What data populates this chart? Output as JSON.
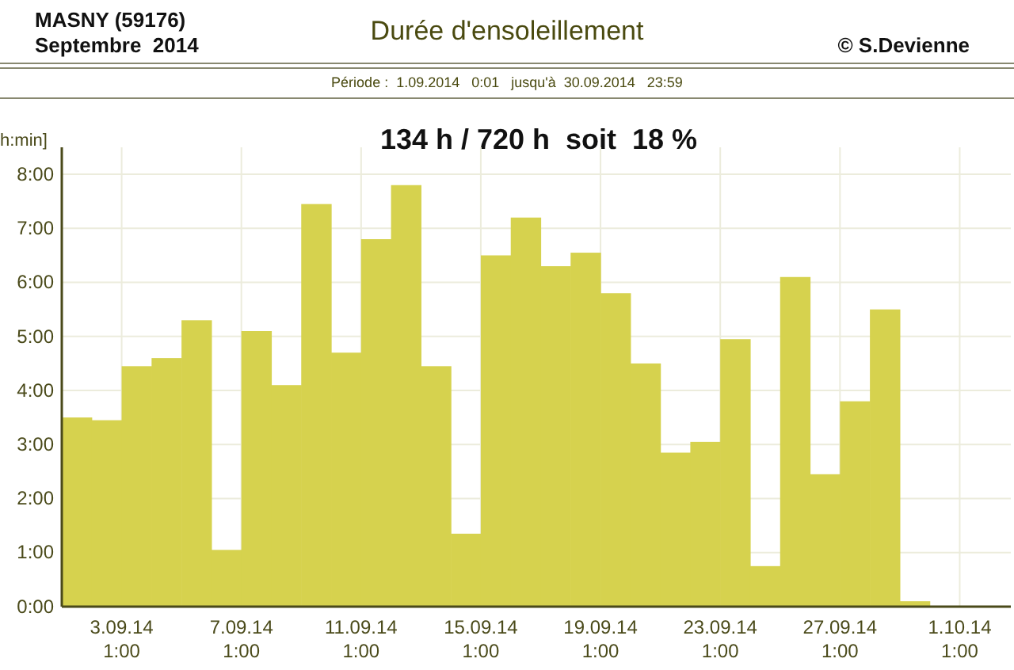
{
  "chart_data": {
    "type": "bar",
    "title": "Durée d'ensoleillement",
    "subtitle": "Période :  1.09.2014   0:01   jusqu'à  30.09.2014   23:59",
    "annotations": [
      "MASNY (59176)",
      "Septembre  2014",
      "© S.Devienne",
      "134 h / 720 h  soit  18 %"
    ],
    "ylabel": "h:min]",
    "x": [
      "2014-09-01T13:00",
      "2014-09-02T13:00",
      "2014-09-03T13:00",
      "2014-09-04T13:00",
      "2014-09-05T13:00",
      "2014-09-06T13:00",
      "2014-09-07T13:00",
      "2014-09-08T13:00",
      "2014-09-09T13:00",
      "2014-09-10T13:00",
      "2014-09-11T13:00",
      "2014-09-12T13:00",
      "2014-09-13T13:00",
      "2014-09-14T13:00",
      "2014-09-15T13:00",
      "2014-09-16T13:00",
      "2014-09-17T13:00",
      "2014-09-18T13:00",
      "2014-09-19T13:00",
      "2014-09-20T13:00",
      "2014-09-21T13:00",
      "2014-09-22T13:00",
      "2014-09-23T13:00",
      "2014-09-24T13:00",
      "2014-09-25T13:00",
      "2014-09-26T13:00",
      "2014-09-27T13:00",
      "2014-09-28T13:00",
      "2014-09-29T13:00"
    ],
    "values": [
      3.5,
      3.45,
      4.45,
      4.6,
      5.3,
      1.05,
      5.1,
      4.1,
      7.45,
      4.7,
      6.8,
      7.8,
      4.45,
      1.35,
      6.5,
      7.2,
      6.3,
      6.55,
      5.8,
      4.5,
      2.85,
      3.05,
      4.95,
      0.75,
      6.1,
      2.45,
      3.8,
      5.5,
      0.1
    ],
    "color": "#d6d24e",
    "xlim": [
      "2014-09-01T01:00",
      "2014-10-02T18:00"
    ],
    "xticks": [
      {
        "value": "2014-09-03T01:00",
        "label": "3.09.14\n1:00"
      },
      {
        "value": "2014-09-07T01:00",
        "label": "7.09.14\n1:00"
      },
      {
        "value": "2014-09-11T01:00",
        "label": "11.09.14\n1:00"
      },
      {
        "value": "2014-09-15T01:00",
        "label": "15.09.14\n1:00"
      },
      {
        "value": "2014-09-19T01:00",
        "label": "19.09.14\n1:00"
      },
      {
        "value": "2014-09-23T01:00",
        "label": "23.09.14\n1:00"
      },
      {
        "value": "2014-09-27T01:00",
        "label": "27.09.14\n1:00"
      },
      {
        "value": "2014-10-01T01:00",
        "label": "1.10.14\n1:00"
      }
    ],
    "ylim": [
      0,
      8.5
    ],
    "yticks": [
      {
        "value": 0,
        "label": "0:00"
      },
      {
        "value": 1,
        "label": "1:00"
      },
      {
        "value": 2,
        "label": "2:00"
      },
      {
        "value": 3,
        "label": "3:00"
      },
      {
        "value": 4,
        "label": "4:00"
      },
      {
        "value": 5,
        "label": "5:00"
      },
      {
        "value": 6,
        "label": "6:00"
      },
      {
        "value": 7,
        "label": "7:00"
      },
      {
        "value": 8,
        "label": "8:00"
      }
    ],
    "grid": true
  }
}
